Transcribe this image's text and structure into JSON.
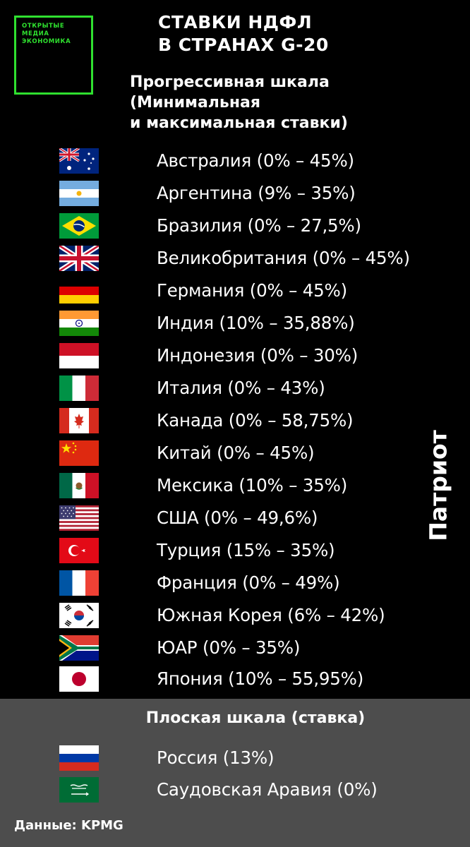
{
  "logo": {
    "lines": [
      "ОТКРЫТЫЕ",
      "МЕДИА",
      "ЭКОНОМИКА"
    ],
    "color": "#2fe02f"
  },
  "title": {
    "line1": "СТАВКИ НДФЛ",
    "line2": "В СТРАНАХ G-20"
  },
  "progressive": {
    "heading_lines": [
      "Прогрессивная шкала",
      "(Минимальная",
      "и максимальная ставки)"
    ],
    "countries": [
      {
        "flag": "australia-flag",
        "label": "Австралия (0% – 45%)",
        "min_rate": 0,
        "max_rate": 45
      },
      {
        "flag": "argentina-flag",
        "label": "Аргентина (9% – 35%)",
        "min_rate": 9,
        "max_rate": 35
      },
      {
        "flag": "brazil-flag",
        "label": "Бразилия (0% – 27,5%)",
        "min_rate": 0,
        "max_rate": 27.5
      },
      {
        "flag": "uk-flag",
        "label": "Великобритания (0% – 45%)",
        "min_rate": 0,
        "max_rate": 45
      },
      {
        "flag": "germany-flag",
        "label": "Германия (0% – 45%)",
        "min_rate": 0,
        "max_rate": 45
      },
      {
        "flag": "india-flag",
        "label": "Индия (10% – 35,88%)",
        "min_rate": 10,
        "max_rate": 35.88
      },
      {
        "flag": "indonesia-flag",
        "label": "Индонезия (0% – 30%)",
        "min_rate": 0,
        "max_rate": 30
      },
      {
        "flag": "italy-flag",
        "label": "Италия (0% – 43%)",
        "min_rate": 0,
        "max_rate": 43
      },
      {
        "flag": "canada-flag",
        "label": "Канада (0% – 58,75%)",
        "min_rate": 0,
        "max_rate": 58.75
      },
      {
        "flag": "china-flag",
        "label": "Китай (0% – 45%)",
        "min_rate": 0,
        "max_rate": 45
      },
      {
        "flag": "mexico-flag",
        "label": "Мексика (10% – 35%)",
        "min_rate": 10,
        "max_rate": 35
      },
      {
        "flag": "usa-flag",
        "label": "США (0% – 49,6%)",
        "min_rate": 0,
        "max_rate": 49.6
      },
      {
        "flag": "turkey-flag",
        "label": "Турция (15% – 35%)",
        "min_rate": 15,
        "max_rate": 35
      },
      {
        "flag": "france-flag",
        "label": "Франция (0% – 49%)",
        "min_rate": 0,
        "max_rate": 49
      },
      {
        "flag": "south-korea-flag",
        "label": "Южная Корея (6% – 42%)",
        "min_rate": 6,
        "max_rate": 42
      },
      {
        "flag": "south-africa-flag",
        "label": "ЮАР (0% – 35%)",
        "min_rate": 0,
        "max_rate": 35
      },
      {
        "flag": "japan-flag",
        "label": "Япония (10% – 55,95%)",
        "min_rate": 10,
        "max_rate": 55.95
      }
    ]
  },
  "flat": {
    "heading": "Плоская шкала (ставка)",
    "panel_color": "#4d4d4d",
    "countries": [
      {
        "flag": "russia-flag",
        "label": "Россия (13%)",
        "rate": 13
      },
      {
        "flag": "saudi-arabia-flag",
        "label": "Саудовская Аравия (0%)",
        "rate": 0
      }
    ]
  },
  "watermark": "Патриот",
  "source": "Данные: KPMG"
}
